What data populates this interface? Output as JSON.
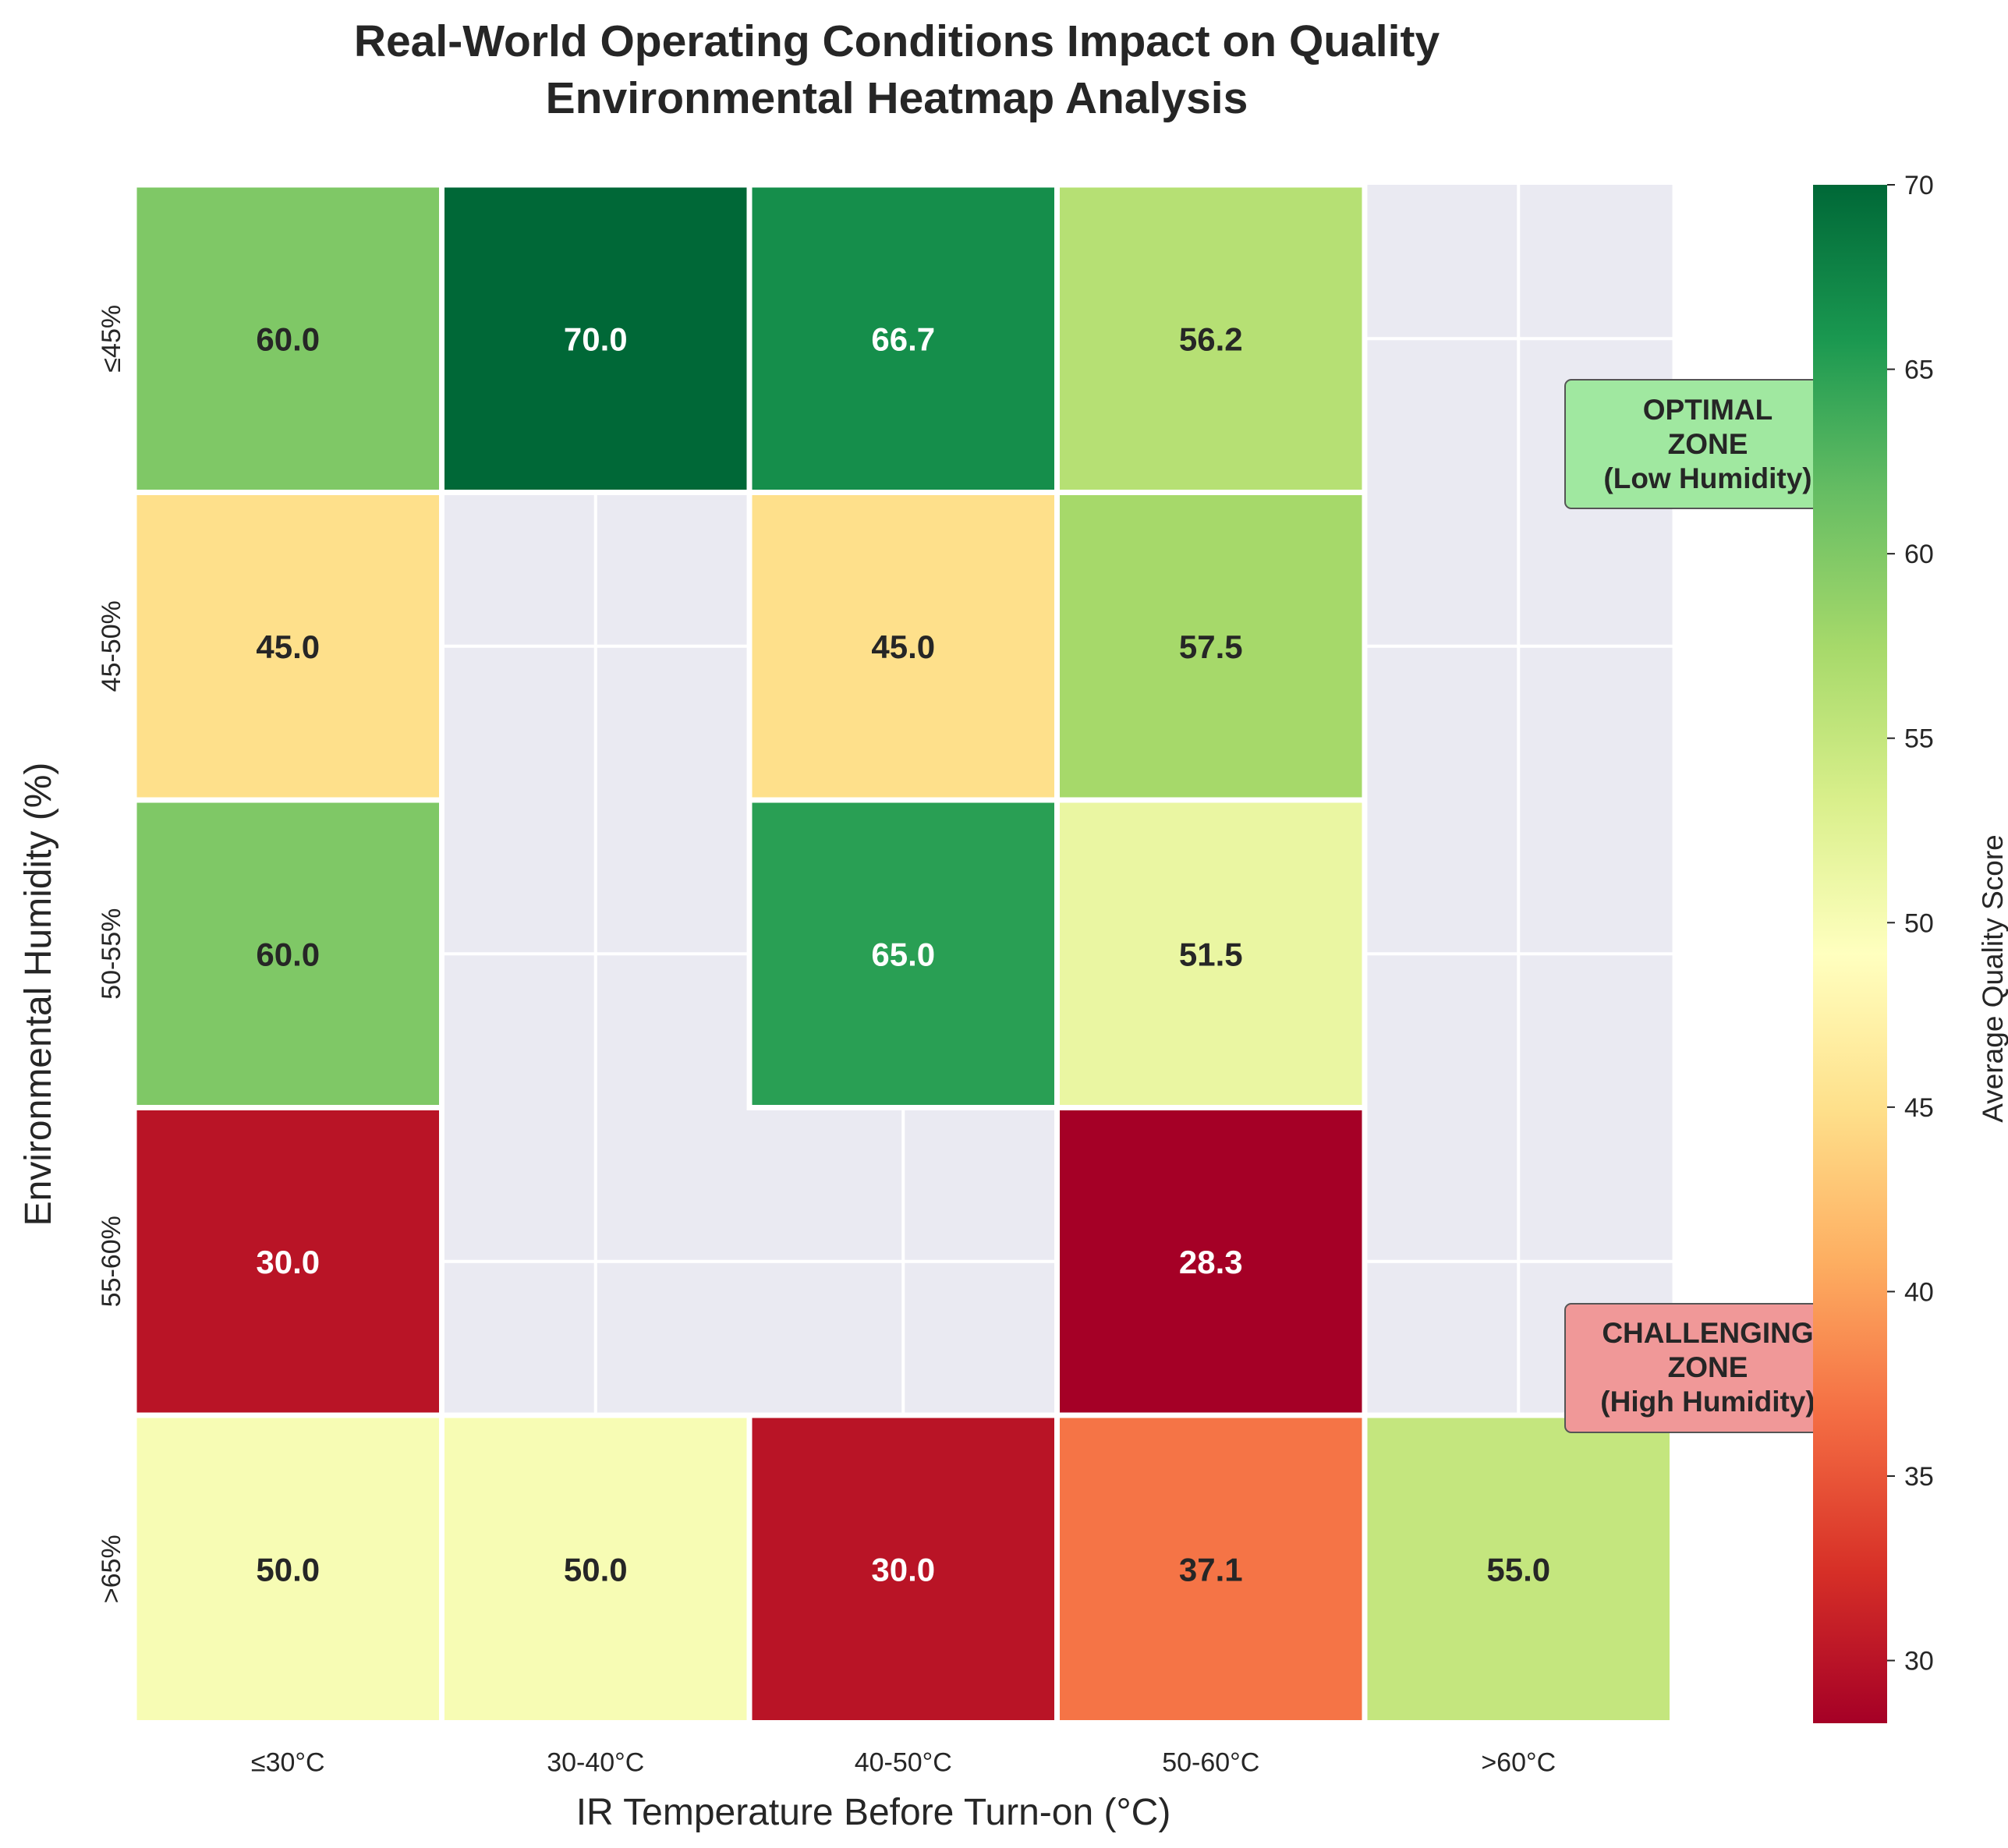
{
  "chart_data": {
    "type": "heatmap",
    "title_line1": "Real-World Operating Conditions Impact on Quality",
    "title_line2": "Environmental Heatmap Analysis",
    "xlabel": "IR Temperature Before Turn-on (°C)",
    "ylabel": "Environmental Humidity (%)",
    "x_categories": [
      "≤30°C",
      "30-40°C",
      "40-50°C",
      "50-60°C",
      ">60°C"
    ],
    "y_categories": [
      "≤45%",
      "45-50%",
      "50-55%",
      "55-60%",
      ">65%"
    ],
    "values": [
      [
        60.0,
        70.0,
        66.7,
        56.2,
        null
      ],
      [
        45.0,
        null,
        45.0,
        57.5,
        null
      ],
      [
        60.0,
        null,
        65.0,
        51.5,
        null
      ],
      [
        30.0,
        null,
        null,
        28.3,
        null
      ],
      [
        50.0,
        50.0,
        30.0,
        37.1,
        55.0
      ]
    ],
    "value_labels": [
      [
        "60.0",
        "70.0",
        "66.7",
        "56.2",
        ""
      ],
      [
        "45.0",
        "",
        "45.0",
        "57.5",
        ""
      ],
      [
        "60.0",
        "",
        "65.0",
        "51.5",
        ""
      ],
      [
        "30.0",
        "",
        "",
        "28.3",
        ""
      ],
      [
        "50.0",
        "50.0",
        "30.0",
        "37.1",
        "55.0"
      ]
    ],
    "colormap": "RdYlGn",
    "vmin": 28.3,
    "vmax": 70.0,
    "colorbar": {
      "label": "Average Quality Score",
      "ticks": [
        30,
        35,
        40,
        45,
        50,
        55,
        60,
        65,
        70
      ],
      "tick_labels": [
        "30",
        "35",
        "40",
        "45",
        "50",
        "55",
        "60",
        "65",
        "70"
      ]
    },
    "annotations": [
      {
        "id": "optimal",
        "lines": [
          "OPTIMAL",
          "ZONE",
          "(Low Humidity)"
        ],
        "facecolor": "#a0e8a0"
      },
      {
        "id": "challenging",
        "lines": [
          "CHALLENGING",
          "ZONE",
          "(High Humidity)"
        ],
        "facecolor": "#f09898"
      }
    ],
    "missing_cell_color": "#eaeaf2",
    "grid": true,
    "legend": "colorbar-right"
  }
}
